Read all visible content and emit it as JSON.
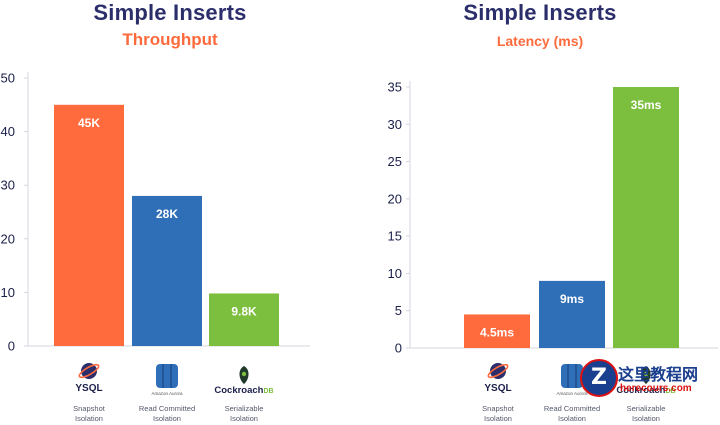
{
  "chart_data": [
    {
      "type": "bar",
      "title": "Simple Inserts",
      "subtitle": "Throughput",
      "categories": [
        "YSQL",
        "Amazon Aurora",
        "CockroachDB"
      ],
      "isolation": [
        "Snapshot Isolation",
        "Read Committed Isolation",
        "Serializable Isolation"
      ],
      "values": [
        45,
        28,
        9.8
      ],
      "value_labels": [
        "45K",
        "28K",
        "9.8K"
      ],
      "colors": [
        "#ff6b3d",
        "#2f6fb8",
        "#7cbf3f"
      ],
      "ylim": [
        0,
        50
      ],
      "yticks": [
        0,
        10,
        20,
        30,
        40,
        50
      ],
      "grid": false
    },
    {
      "type": "bar",
      "title": "Simple Inserts",
      "subtitle": "Latency (ms)",
      "categories": [
        "YSQL",
        "Amazon Aurora",
        "CockroachDB"
      ],
      "isolation": [
        "Snapshot Isolation",
        "Read Committed Isolation",
        "Serializable Isolation"
      ],
      "values": [
        4.5,
        9,
        35
      ],
      "value_labels": [
        "4.5ms",
        "9ms",
        "35ms"
      ],
      "colors": [
        "#ff6b3d",
        "#2f6fb8",
        "#7cbf3f"
      ],
      "ylim": [
        0,
        35
      ],
      "yticks": [
        0,
        5,
        10,
        15,
        20,
        25,
        30,
        35
      ],
      "grid": false
    }
  ],
  "logos": {
    "ysql": "YSQL",
    "aurora": "Amazon Aurora",
    "cockroach_a": "Cockroach",
    "cockroach_b": "DB"
  },
  "watermark": {
    "text": "这里教程网",
    "url": "herecours.com"
  }
}
